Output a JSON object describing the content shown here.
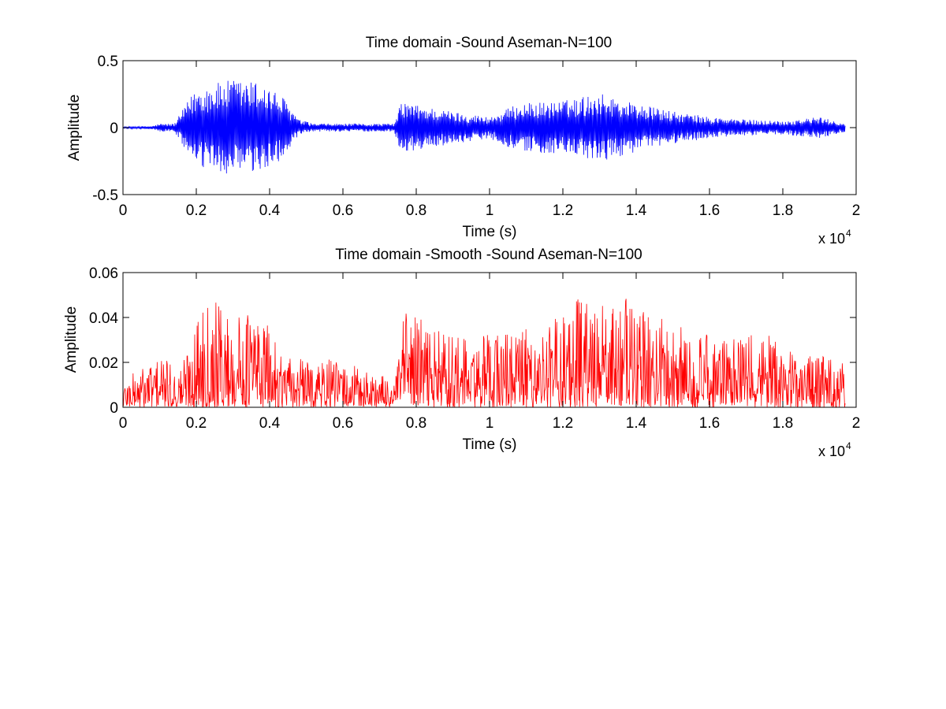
{
  "chart_data": [
    {
      "type": "line",
      "title": "Time domain -Sound Aseman-N=100",
      "xlabel": "Time (s)",
      "ylabel": "Amplitude",
      "x_scale_note": "x 10",
      "x_scale_exponent": "4",
      "xlim": [
        0,
        2
      ],
      "ylim": [
        -0.5,
        0.5
      ],
      "x_ticks": [
        "0",
        "0.2",
        "0.4",
        "0.6",
        "0.8",
        "1",
        "1.2",
        "1.4",
        "1.6",
        "1.8",
        "2"
      ],
      "y_ticks": [
        "-0.5",
        "0",
        "0.5"
      ],
      "grid": false,
      "color": "#0000ff",
      "signal_end": 1.97,
      "envelope": [
        {
          "x": 0.0,
          "amp": 0.006
        },
        {
          "x": 0.08,
          "amp": 0.012
        },
        {
          "x": 0.1,
          "amp": 0.03
        },
        {
          "x": 0.14,
          "amp": 0.03
        },
        {
          "x": 0.16,
          "amp": 0.12
        },
        {
          "x": 0.2,
          "amp": 0.3
        },
        {
          "x": 0.3,
          "amp": 0.36
        },
        {
          "x": 0.38,
          "amp": 0.34
        },
        {
          "x": 0.44,
          "amp": 0.22
        },
        {
          "x": 0.48,
          "amp": 0.06
        },
        {
          "x": 0.52,
          "amp": 0.03
        },
        {
          "x": 0.74,
          "amp": 0.03
        },
        {
          "x": 0.76,
          "amp": 0.2
        },
        {
          "x": 0.8,
          "amp": 0.17
        },
        {
          "x": 0.9,
          "amp": 0.12
        },
        {
          "x": 1.0,
          "amp": 0.08
        },
        {
          "x": 1.08,
          "amp": 0.18
        },
        {
          "x": 1.2,
          "amp": 0.2
        },
        {
          "x": 1.3,
          "amp": 0.26
        },
        {
          "x": 1.4,
          "amp": 0.18
        },
        {
          "x": 1.5,
          "amp": 0.12
        },
        {
          "x": 1.6,
          "amp": 0.08
        },
        {
          "x": 1.7,
          "amp": 0.06
        },
        {
          "x": 1.8,
          "amp": 0.05
        },
        {
          "x": 1.9,
          "amp": 0.08
        },
        {
          "x": 1.97,
          "amp": 0.03
        }
      ]
    },
    {
      "type": "line",
      "title": "Time domain -Smooth -Sound Aseman-N=100",
      "xlabel": "Time (s)",
      "ylabel": "Amplitude",
      "x_scale_note": "x 10",
      "x_scale_exponent": "4",
      "xlim": [
        0,
        2
      ],
      "ylim": [
        0,
        0.06
      ],
      "x_ticks": [
        "0",
        "0.2",
        "0.4",
        "0.6",
        "0.8",
        "1",
        "1.2",
        "1.4",
        "1.6",
        "1.8",
        "2"
      ],
      "y_ticks": [
        "0",
        "0.02",
        "0.04",
        "0.06"
      ],
      "grid": false,
      "color": "#ff0000",
      "signal_end": 1.97,
      "envelope": [
        {
          "x": 0.0,
          "amp": 0.012
        },
        {
          "x": 0.1,
          "amp": 0.024
        },
        {
          "x": 0.15,
          "amp": 0.016
        },
        {
          "x": 0.18,
          "amp": 0.03
        },
        {
          "x": 0.23,
          "amp": 0.053
        },
        {
          "x": 0.3,
          "amp": 0.04
        },
        {
          "x": 0.36,
          "amp": 0.045
        },
        {
          "x": 0.4,
          "amp": 0.035
        },
        {
          "x": 0.45,
          "amp": 0.022
        },
        {
          "x": 0.55,
          "amp": 0.022
        },
        {
          "x": 0.65,
          "amp": 0.018
        },
        {
          "x": 0.74,
          "amp": 0.012
        },
        {
          "x": 0.77,
          "amp": 0.045
        },
        {
          "x": 0.85,
          "amp": 0.035
        },
        {
          "x": 0.95,
          "amp": 0.03
        },
        {
          "x": 1.05,
          "amp": 0.035
        },
        {
          "x": 1.15,
          "amp": 0.035
        },
        {
          "x": 1.23,
          "amp": 0.05
        },
        {
          "x": 1.3,
          "amp": 0.045
        },
        {
          "x": 1.38,
          "amp": 0.05
        },
        {
          "x": 1.45,
          "amp": 0.042
        },
        {
          "x": 1.55,
          "amp": 0.035
        },
        {
          "x": 1.65,
          "amp": 0.03
        },
        {
          "x": 1.75,
          "amp": 0.035
        },
        {
          "x": 1.85,
          "amp": 0.025
        },
        {
          "x": 1.97,
          "amp": 0.02
        }
      ]
    }
  ]
}
